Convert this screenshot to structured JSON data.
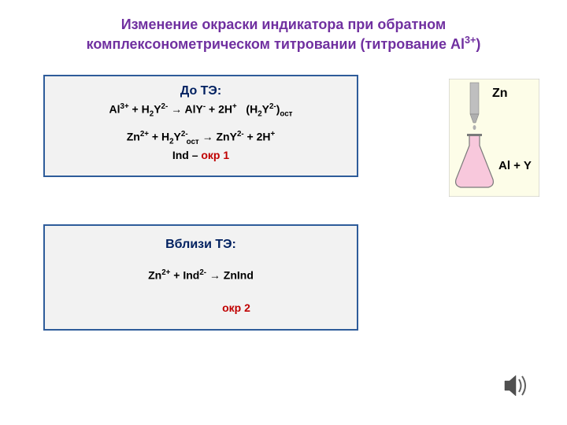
{
  "title_line1": "Изменение окраски индикатора при обратном",
  "title_line2_pre": "комплексонометрическом титровании (титрование Al",
  "title_line2_sup": "3+",
  "title_line2_post": ")",
  "box1": {
    "title": "До ТЭ:",
    "reaction1_html": "Al<sup>3+</sup> + H<sub>2</sub>Y<sup>2-</sup> → AlY<sup>-</sup> + 2H<sup>+</sup> &nbsp; (H<sub>2</sub>Y<sup>2-</sup>)<sub>ост</sub>",
    "reaction2_html": "Zn<sup>2+</sup> + H<sub>2</sub>Y<sup>2-</sup><sub class=\"sub-after-sup\">ост</sub> → ZnY<sup>2-</sup> + 2H<sup>+</sup>",
    "ind_pre": "Ind – ",
    "ind_okr": "окр 1"
  },
  "box2": {
    "title": "Вблизи ТЭ:",
    "reaction_html": "Zn<sup>2+</sup> + Ind<sup>2-</sup> → ZnInd",
    "okr": "окр 2"
  },
  "diagram": {
    "zn_label": "Zn",
    "flask_label": "Al + Y",
    "colors": {
      "background": "#fdfde8",
      "border": "#c0c0c0",
      "burette_fill": "#bfbfbf",
      "flask_fill": "#f8c8dc",
      "flask_outline": "#7a7a7a",
      "tube_fill": "#b0b0b0"
    }
  },
  "colors": {
    "title": "#7030a0",
    "box_border": "#2e5c9a",
    "box_bg": "#f2f2f2",
    "box_title": "#002060",
    "okr": "#c00000",
    "text": "#000000"
  }
}
